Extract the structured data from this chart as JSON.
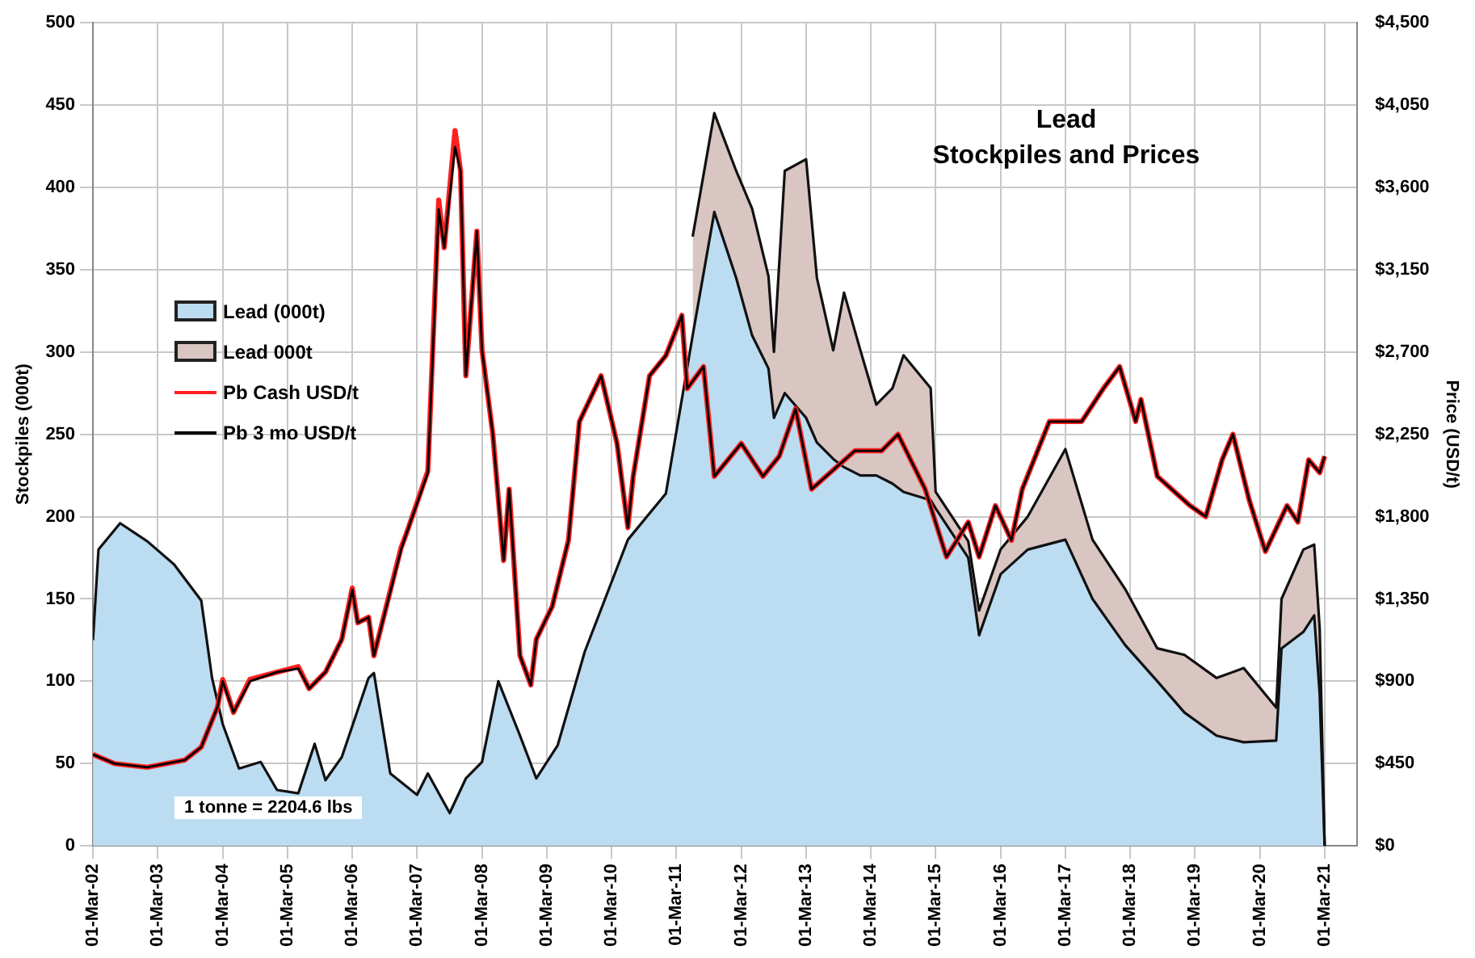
{
  "chart_data": {
    "type": "area",
    "title": "Lead",
    "subtitle": "Stockpiles and Prices",
    "ylabel": "Stockpiles (000t)",
    "y2label": "Price (USD/t)",
    "annotations": [
      "1 tonne = 2204.6 lbs"
    ],
    "stacked": true,
    "grid": true,
    "legend": "left",
    "marker": "none",
    "line_style": "solid",
    "x": [
      "2002-03",
      "2002-04",
      "2002-08",
      "2003-01",
      "2003-06",
      "2003-11",
      "2004-01",
      "2004-03",
      "2004-06",
      "2004-10",
      "2005-01",
      "2005-05",
      "2005-08",
      "2005-10",
      "2006-01",
      "2006-06",
      "2006-07",
      "2006-10",
      "2007-03",
      "2007-05",
      "2007-09",
      "2007-12",
      "2008-03",
      "2008-06",
      "2008-10",
      "2009-01",
      "2009-05",
      "2009-10",
      "2010-06",
      "2011-01",
      "2011-06",
      "2011-10",
      "2012-02",
      "2012-05",
      "2012-08",
      "2012-09",
      "2012-11",
      "2013-03",
      "2013-05",
      "2013-08",
      "2013-10",
      "2014-01",
      "2014-04",
      "2014-07",
      "2014-09",
      "2015-02",
      "2015-03",
      "2015-09",
      "2015-11",
      "2016-03",
      "2016-08",
      "2017-03",
      "2017-08",
      "2018-02",
      "2018-08",
      "2019-01",
      "2019-07",
      "2019-12",
      "2020-06",
      "2020-07",
      "2020-11",
      "2021-01",
      "2021-02",
      "2021-03"
    ],
    "series": [
      {
        "name": "Lead (000t)",
        "color": "#bcdcf2",
        "values": [
          125,
          180,
          196,
          185,
          171,
          149,
          102,
          74,
          47,
          51,
          34,
          32,
          62,
          40,
          54,
          102,
          105,
          44,
          31,
          44,
          20,
          41,
          51,
          100,
          67,
          41,
          61,
          118,
          186,
          214,
          310,
          385,
          345,
          310,
          290,
          260,
          275,
          260,
          245,
          235,
          230,
          225,
          225,
          220,
          215,
          210,
          205,
          175,
          128,
          165,
          180,
          186,
          150,
          122,
          100,
          81,
          67,
          63,
          64,
          120,
          130,
          140,
          92,
          0
        ]
      },
      {
        "name": "Lead 000t",
        "color": "#d9c6c2",
        "values": [
          null,
          null,
          null,
          null,
          null,
          null,
          null,
          null,
          null,
          null,
          null,
          null,
          null,
          null,
          null,
          null,
          null,
          null,
          null,
          null,
          null,
          null,
          null,
          null,
          null,
          null,
          null,
          null,
          null,
          null,
          60,
          60,
          65,
          77,
          56,
          40,
          135,
          157,
          100,
          66,
          106,
          76,
          43,
          58,
          83,
          68,
          10,
          10,
          15,
          15,
          20,
          55,
          36,
          34,
          20,
          35,
          35,
          45,
          20,
          30,
          50,
          43,
          40,
          0
        ]
      },
      {
        "name": "Pb Cash USD/t",
        "type": "line",
        "axis": "y2",
        "color": "#ff2020",
        "x": [
          "2002-03",
          "2002-07",
          "2003-01",
          "2003-08",
          "2003-11",
          "2004-02",
          "2004-03",
          "2004-05",
          "2004-08",
          "2005-01",
          "2005-05",
          "2005-07",
          "2005-10",
          "2006-01",
          "2006-03",
          "2006-04",
          "2006-06",
          "2006-07",
          "2006-12",
          "2007-01",
          "2007-05",
          "2007-07",
          "2007-08",
          "2007-10",
          "2007-11",
          "2007-12",
          "2008-02",
          "2008-03",
          "2008-05",
          "2008-07",
          "2008-08",
          "2008-10",
          "2008-12",
          "2009-01",
          "2009-04",
          "2009-07",
          "2009-09",
          "2010-01",
          "2010-04",
          "2010-06",
          "2010-07",
          "2010-10",
          "2011-01",
          "2011-04",
          "2011-05",
          "2011-08",
          "2011-10",
          "2012-03",
          "2012-07",
          "2012-10",
          "2013-01",
          "2013-04",
          "2013-12",
          "2014-05",
          "2014-08",
          "2015-01",
          "2015-05",
          "2015-09",
          "2015-11",
          "2016-02",
          "2016-05",
          "2016-07",
          "2016-12",
          "2017-06",
          "2017-10",
          "2018-01",
          "2018-04",
          "2018-05",
          "2018-08",
          "2019-02",
          "2019-05",
          "2019-08",
          "2019-10",
          "2020-01",
          "2020-04",
          "2020-08",
          "2020-10",
          "2020-12",
          "2021-02",
          "2021-03"
        ],
        "values": [
          500,
          450,
          430,
          470,
          540,
          760,
          910,
          730,
          910,
          950,
          980,
          860,
          950,
          1130,
          1410,
          1220,
          1250,
          1040,
          1630,
          1710,
          2050,
          3530,
          3270,
          3910,
          3690,
          2570,
          3360,
          2710,
          2250,
          1560,
          1950,
          1040,
          880,
          1130,
          1310,
          1670,
          2320,
          2570,
          2200,
          1740,
          2020,
          2570,
          2680,
          2900,
          2500,
          2620,
          2020,
          2200,
          2020,
          2130,
          2390,
          1950,
          2160,
          2160,
          2250,
          1950,
          1580,
          1770,
          1580,
          1860,
          1670,
          1950,
          2320,
          2320,
          2500,
          2620,
          2320,
          2440,
          2020,
          1860,
          1800,
          2110,
          2250,
          1890,
          1610,
          1860,
          1770,
          2110,
          2040,
          2130
        ]
      },
      {
        "name": "Pb 3 mo USD/t",
        "type": "line",
        "axis": "y2",
        "color": "#000000",
        "x": [
          "2002-03",
          "2002-07",
          "2003-01",
          "2003-08",
          "2003-11",
          "2004-02",
          "2004-03",
          "2004-05",
          "2004-08",
          "2005-01",
          "2005-05",
          "2005-07",
          "2005-10",
          "2006-01",
          "2006-03",
          "2006-04",
          "2006-06",
          "2006-07",
          "2006-12",
          "2007-01",
          "2007-05",
          "2007-07",
          "2007-08",
          "2007-10",
          "2007-11",
          "2007-12",
          "2008-02",
          "2008-03",
          "2008-05",
          "2008-07",
          "2008-08",
          "2008-10",
          "2008-12",
          "2009-01",
          "2009-04",
          "2009-07",
          "2009-09",
          "2010-01",
          "2010-04",
          "2010-06",
          "2010-07",
          "2010-10",
          "2011-01",
          "2011-04",
          "2011-05",
          "2011-08",
          "2011-10",
          "2012-03",
          "2012-07",
          "2012-10",
          "2013-01",
          "2013-04",
          "2013-12",
          "2014-05",
          "2014-08",
          "2015-01",
          "2015-05",
          "2015-09",
          "2015-11",
          "2016-02",
          "2016-05",
          "2016-07",
          "2016-12",
          "2017-06",
          "2017-10",
          "2018-01",
          "2018-04",
          "2018-05",
          "2018-08",
          "2019-02",
          "2019-05",
          "2019-08",
          "2019-10",
          "2020-01",
          "2020-04",
          "2020-08",
          "2020-10",
          "2020-12",
          "2021-02",
          "2021-03"
        ],
        "values": [
          500,
          450,
          430,
          470,
          540,
          760,
          900,
          730,
          900,
          950,
          970,
          860,
          950,
          1130,
          1400,
          1220,
          1250,
          1040,
          1620,
          1710,
          2040,
          3480,
          3270,
          3820,
          3690,
          2570,
          3360,
          2710,
          2250,
          1560,
          1950,
          1040,
          880,
          1130,
          1310,
          1670,
          2320,
          2570,
          2200,
          1740,
          2020,
          2570,
          2680,
          2900,
          2500,
          2620,
          2020,
          2200,
          2020,
          2130,
          2390,
          1950,
          2160,
          2160,
          2250,
          1950,
          1580,
          1770,
          1580,
          1860,
          1670,
          1950,
          2320,
          2320,
          2500,
          2620,
          2320,
          2440,
          2020,
          1860,
          1800,
          2110,
          2250,
          1890,
          1610,
          1860,
          1770,
          2110,
          2040,
          2130
        ]
      }
    ],
    "xlim": [
      "2002-03-01",
      "2021-09-01"
    ],
    "xticks": [
      {
        "value": "2002-03-01",
        "label": "01-Mar-02"
      },
      {
        "value": "2003-03-01",
        "label": "01-Mar-03"
      },
      {
        "value": "2004-03-01",
        "label": "01-Mar-04"
      },
      {
        "value": "2005-03-01",
        "label": "01-Mar-05"
      },
      {
        "value": "2006-03-01",
        "label": "01-Mar-06"
      },
      {
        "value": "2007-03-01",
        "label": "01-Mar-07"
      },
      {
        "value": "2008-03-01",
        "label": "01-Mar-08"
      },
      {
        "value": "2009-03-01",
        "label": "01-Mar-09"
      },
      {
        "value": "2010-03-01",
        "label": "01-Mar-10"
      },
      {
        "value": "2011-03-01",
        "label": "01-Mar-11"
      },
      {
        "value": "2012-03-01",
        "label": "01-Mar-12"
      },
      {
        "value": "2013-03-01",
        "label": "01-Mar-13"
      },
      {
        "value": "2014-03-01",
        "label": "01-Mar-14"
      },
      {
        "value": "2015-03-01",
        "label": "01-Mar-15"
      },
      {
        "value": "2016-03-01",
        "label": "01-Mar-16"
      },
      {
        "value": "2017-03-01",
        "label": "01-Mar-17"
      },
      {
        "value": "2018-03-01",
        "label": "01-Mar-18"
      },
      {
        "value": "2019-03-01",
        "label": "01-Mar-19"
      },
      {
        "value": "2020-03-01",
        "label": "01-Mar-20"
      },
      {
        "value": "2021-03-01",
        "label": "01-Mar-21"
      }
    ],
    "ylim": [
      0,
      500
    ],
    "yticks": [
      0,
      50,
      100,
      150,
      200,
      250,
      300,
      350,
      400,
      450,
      500
    ],
    "y2lim": [
      0,
      4500
    ],
    "y2ticks": [
      {
        "value": 0,
        "label": "$0"
      },
      {
        "value": 450,
        "label": "$450"
      },
      {
        "value": 900,
        "label": "$900"
      },
      {
        "value": 1350,
        "label": "$1,350"
      },
      {
        "value": 1800,
        "label": "$1,800"
      },
      {
        "value": 2250,
        "label": "$2,250"
      },
      {
        "value": 2700,
        "label": "$2,700"
      },
      {
        "value": 3150,
        "label": "$3,150"
      },
      {
        "value": 3600,
        "label": "$3,600"
      },
      {
        "value": 4050,
        "label": "$4,050"
      },
      {
        "value": 4500,
        "label": "$4,500"
      }
    ]
  }
}
